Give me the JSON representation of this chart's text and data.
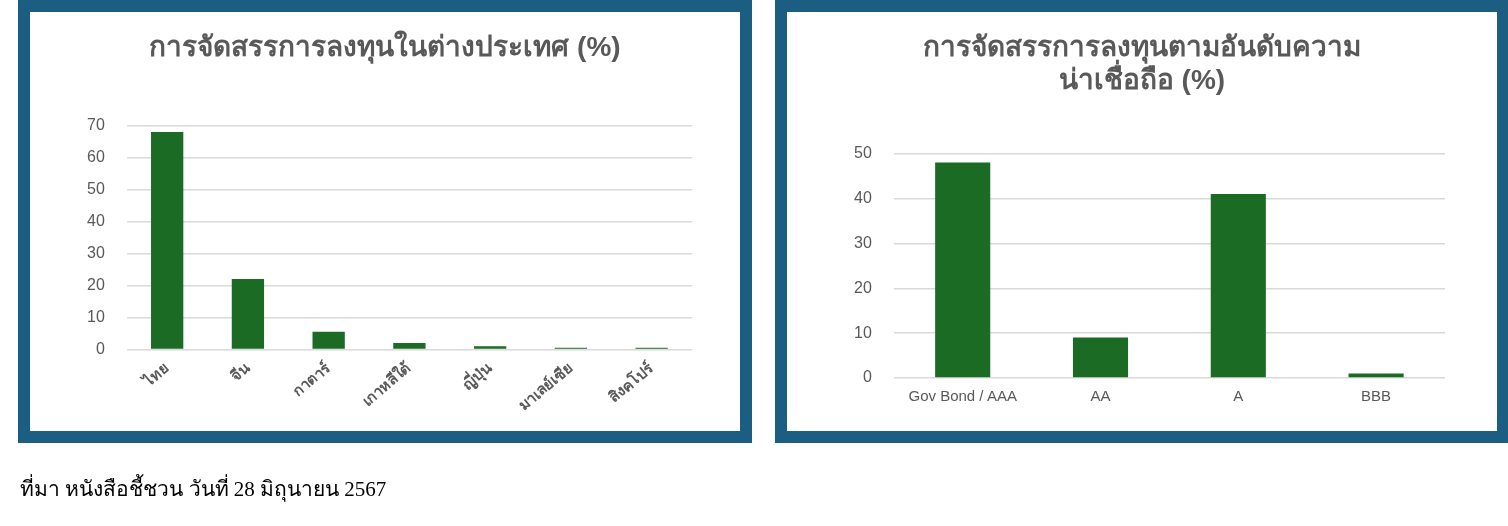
{
  "chart_data": [
    {
      "type": "bar",
      "title": "การจัดสรรการลงทุนในต่างประเทศ (%)",
      "categories": [
        "ไทย",
        "จีน",
        "กาตาร์",
        "เกาหลีใต้",
        "ญี่ปุ่น",
        "มาเลย์เซีย",
        "สิงคโปร์"
      ],
      "values": [
        68,
        22,
        5.5,
        2,
        1,
        0.5,
        0.5
      ],
      "color": "#1b6b25",
      "ylim": [
        0,
        70
      ],
      "yticks": [
        0,
        10,
        20,
        30,
        40,
        50,
        60,
        70
      ],
      "grid": "y",
      "annotations": [
        "ที่มา หนังสือชี้ชวน วันที่ 28 มิถุนายน 2567"
      ]
    },
    {
      "type": "bar",
      "title": "การจัดสรรการลงทุนตามอันดับความน่าเชื่อถือ (%)",
      "categories": [
        "Gov Bond / AAA",
        "AA",
        "A",
        "BBB"
      ],
      "values": [
        48,
        9,
        41,
        1
      ],
      "color": "#1b6b25",
      "ylim": [
        0,
        50
      ],
      "yticks": [
        0,
        10,
        20,
        30,
        40,
        50
      ],
      "grid": "y"
    }
  ]
}
